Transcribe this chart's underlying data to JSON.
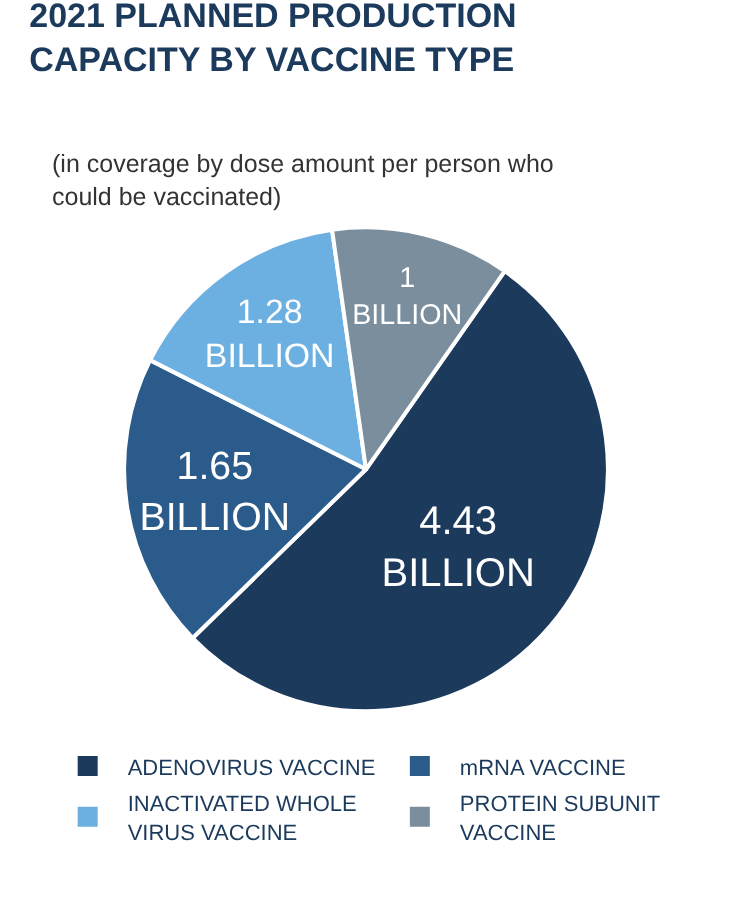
{
  "chart_data": {
    "type": "pie",
    "title": "2021 PLANNED PRODUCTION CAPACITY BY VACCINE TYPE",
    "subtitle": "(in coverage by dose amount per person who could be vaccinated)",
    "categories": [
      "ADENOVIRUS VACCINE",
      "mRNA VACCINE",
      "INACTIVATED WHOLE VIRUS VACCINE",
      "PROTEIN SUBUNIT VACCINE"
    ],
    "values": [
      4.43,
      1.65,
      1.28,
      1
    ],
    "value_labels": [
      "4.43 BILLION",
      "1.65 BILLION",
      "1.28 BILLION",
      "1 BILLION"
    ],
    "colors": [
      "#1b3a5c",
      "#2b5b8b",
      "#6cb0e2",
      "#7b8e9d"
    ],
    "legend": "bottom"
  }
}
